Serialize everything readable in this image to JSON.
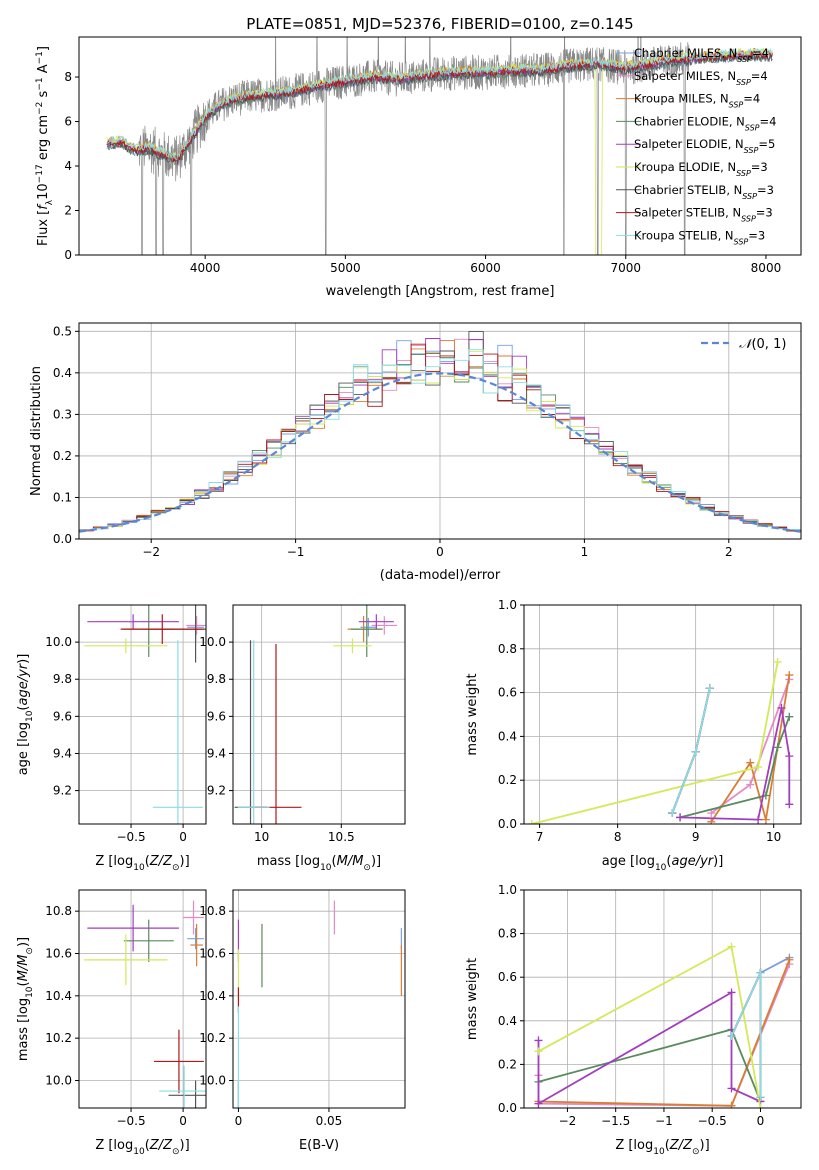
{
  "figure": {
    "title": "PLATE=0851, MJD=52376, FIBERID=0100, z=0.145"
  },
  "colors": {
    "Chabrier MILES": "#7a9fdf",
    "Salpeter MILES": "#e58ac4",
    "Kroupa MILES": "#d97d33",
    "Chabrier ELODIE": "#5a8a5e",
    "Salpeter ELODIE": "#a23dc0",
    "Kroupa ELODIE": "#d2ea58",
    "Chabrier STELIB": "#555555",
    "Salpeter STELIB": "#b01818",
    "Kroupa STELIB": "#88dde6",
    "data": "#888888",
    "normal": "#5b86d6"
  },
  "chart_data": [
    {
      "id": "spectrum",
      "type": "line",
      "xlabel": "wavelength [Angstrom, rest frame]",
      "ylabel": "Flux [f_λ10^-17 erg cm^-2 s^-1 A^-1]",
      "xlim": [
        3100,
        8250
      ],
      "ylim": [
        0,
        9.8
      ],
      "xticks": [
        4000,
        5000,
        6000,
        7000,
        8000
      ],
      "yticks": [
        0,
        2,
        4,
        6,
        8
      ],
      "grid": false,
      "legend_position": "upper-right",
      "legend": [
        {
          "name": "Chabrier MILES",
          "label": "Chabrier MILES, N",
          "sub": "SSP",
          "suffix": "=4"
        },
        {
          "name": "Salpeter MILES",
          "label": "Salpeter MILES, N",
          "sub": "SSP",
          "suffix": "=4"
        },
        {
          "name": "Kroupa MILES",
          "label": "Kroupa MILES, N",
          "sub": "SSP",
          "suffix": "=4"
        },
        {
          "name": "Chabrier ELODIE",
          "label": "Chabrier ELODIE, N",
          "sub": "SSP",
          "suffix": "=4"
        },
        {
          "name": "Salpeter ELODIE",
          "label": "Salpeter ELODIE, N",
          "sub": "SSP",
          "suffix": "=5"
        },
        {
          "name": "Kroupa ELODIE",
          "label": "Kroupa ELODIE, N",
          "sub": "SSP",
          "suffix": "=3"
        },
        {
          "name": "Chabrier STELIB",
          "label": "Chabrier STELIB, N",
          "sub": "SSP",
          "suffix": "=3"
        },
        {
          "name": "Salpeter STELIB",
          "label": "Salpeter STELIB, N",
          "sub": "SSP",
          "suffix": "=3"
        },
        {
          "name": "Kroupa STELIB",
          "label": "Kroupa STELIB, N",
          "sub": "SSP",
          "suffix": "=3"
        }
      ],
      "continuum": [
        [
          3300,
          5.0
        ],
        [
          3400,
          5.1
        ],
        [
          3500,
          4.7
        ],
        [
          3600,
          4.8
        ],
        [
          3700,
          4.5
        ],
        [
          3800,
          4.3
        ],
        [
          3900,
          5.2
        ],
        [
          4000,
          6.2
        ],
        [
          4100,
          6.7
        ],
        [
          4200,
          7.0
        ],
        [
          4400,
          7.2
        ],
        [
          4600,
          7.3
        ],
        [
          4800,
          7.6
        ],
        [
          5000,
          7.8
        ],
        [
          5200,
          8.0
        ],
        [
          5400,
          7.9
        ],
        [
          5600,
          8.1
        ],
        [
          5800,
          8.2
        ],
        [
          6000,
          8.2
        ],
        [
          6200,
          8.3
        ],
        [
          6400,
          8.3
        ],
        [
          6600,
          8.5
        ],
        [
          6800,
          8.6
        ],
        [
          7000,
          8.4
        ],
        [
          7200,
          8.6
        ],
        [
          7400,
          8.8
        ],
        [
          7600,
          8.9
        ],
        [
          7800,
          9.0
        ],
        [
          8000,
          9.0
        ],
        [
          8100,
          9.0
        ]
      ],
      "data_range": [
        3525,
        7450
      ],
      "model_range": [
        3300,
        8050
      ],
      "notes_absorption": [
        3550,
        3650,
        3700,
        3900,
        4860,
        6560,
        6800,
        7000,
        7420
      ]
    },
    {
      "id": "residuals",
      "type": "bar",
      "xlabel": "(data-model)/error",
      "ylabel": "Normed distribution",
      "xlim": [
        -2.5,
        2.5
      ],
      "ylim": [
        0,
        0.52
      ],
      "xticks": [
        -2,
        -1,
        0,
        1,
        2
      ],
      "yticks": [
        0.0,
        0.1,
        0.2,
        0.3,
        0.4,
        0.5
      ],
      "grid": true,
      "legend_position": "upper-right",
      "legend": "N(0,1)",
      "bin_width": 0.1
    },
    {
      "id": "age-vs-Z",
      "type": "scatter",
      "xlabel": "Z [log10(Z/Z⊙)]",
      "ylabel": "age [log10(age/yr)]",
      "xlim": [
        -1.0,
        0.22
      ],
      "ylim": [
        9.02,
        10.2
      ],
      "xticks": [
        -0.5,
        0.0
      ],
      "yticks": [
        9.2,
        9.4,
        9.6,
        9.8,
        10.0
      ],
      "grid": true,
      "points": [
        {
          "series": "Chabrier MILES",
          "x": 0.12,
          "y": 10.08,
          "xerr": 0.08,
          "yerr": 0.05
        },
        {
          "series": "Salpeter MILES",
          "x": 0.13,
          "y": 10.09,
          "xerr": 0.1,
          "yerr": 0.05
        },
        {
          "series": "Kroupa MILES",
          "x": 0.12,
          "y": 10.07,
          "xerr": 0.06,
          "yerr": 0.07
        },
        {
          "series": "Chabrier ELODIE",
          "x": -0.33,
          "y": 10.07,
          "xerr": 0.24,
          "yerr": 0.15
        },
        {
          "series": "Salpeter ELODIE",
          "x": -0.48,
          "y": 10.11,
          "xerr": 0.44,
          "yerr": 0.04
        },
        {
          "series": "Kroupa ELODIE",
          "x": -0.55,
          "y": 9.98,
          "xerr": 0.4,
          "yerr": 0.04
        },
        {
          "series": "Chabrier STELIB",
          "x": 0.12,
          "y": 10.07,
          "xerr": 0.46,
          "yerr": 0.18
        },
        {
          "series": "Salpeter STELIB",
          "x": -0.2,
          "y": 10.07,
          "xerr": 0.4,
          "yerr": 0.08
        },
        {
          "series": "Kroupa STELIB",
          "x": -0.05,
          "y": 9.11,
          "xerr": 0.24,
          "yerr": 0.9
        }
      ]
    },
    {
      "id": "age-vs-mass",
      "type": "scatter",
      "xlabel": "mass [log10(M/M⊙)]",
      "ylabel": "",
      "xlim": [
        9.82,
        10.9
      ],
      "ylim": [
        9.02,
        10.2
      ],
      "xticks": [
        10.0,
        10.5
      ],
      "yticks": [
        9.2,
        9.4,
        9.6,
        9.8,
        10.0
      ],
      "grid": true,
      "points": [
        {
          "series": "Chabrier MILES",
          "x": 10.67,
          "y": 10.08,
          "xerr": 0.05,
          "yerr": 0.05
        },
        {
          "series": "Salpeter MILES",
          "x": 10.77,
          "y": 10.09,
          "xerr": 0.08,
          "yerr": 0.05
        },
        {
          "series": "Kroupa MILES",
          "x": 10.64,
          "y": 10.07,
          "xerr": 0.1,
          "yerr": 0.07
        },
        {
          "series": "Chabrier ELODIE",
          "x": 10.66,
          "y": 10.07,
          "xerr": 0.1,
          "yerr": 0.15
        },
        {
          "series": "Salpeter ELODIE",
          "x": 10.72,
          "y": 10.11,
          "xerr": 0.11,
          "yerr": 0.04
        },
        {
          "series": "Kroupa ELODIE",
          "x": 10.57,
          "y": 9.98,
          "xerr": 0.12,
          "yerr": 0.04
        },
        {
          "series": "Chabrier STELIB",
          "x": 9.93,
          "y": 9.11,
          "xerr": 0.1,
          "yerr": 0.9
        },
        {
          "series": "Salpeter STELIB",
          "x": 10.09,
          "y": 9.11,
          "xerr": 0.16,
          "yerr": 0.88
        },
        {
          "series": "Kroupa STELIB",
          "x": 9.95,
          "y": 9.11,
          "xerr": 0.1,
          "yerr": 0.9
        }
      ]
    },
    {
      "id": "massweight-vs-age",
      "type": "line",
      "xlabel": "age [log10(age/yr)]",
      "ylabel": "mass weight",
      "xlim": [
        6.8,
        10.35
      ],
      "ylim": [
        0,
        1
      ],
      "xticks": [
        7,
        8,
        9,
        10
      ],
      "yticks": [
        0.0,
        0.2,
        0.4,
        0.6,
        0.8,
        1.0
      ],
      "grid": true,
      "series": [
        {
          "name": "Chabrier MILES",
          "x": [
            8.7,
            9.0,
            9.18
          ],
          "y": [
            0.05,
            0.33,
            0.62
          ]
        },
        {
          "name": "Salpeter MILES",
          "x": [
            9.2,
            9.7,
            10.2
          ],
          "y": [
            0.05,
            0.18,
            0.66
          ]
        },
        {
          "name": "Kroupa MILES",
          "x": [
            9.2,
            9.7,
            9.9,
            10.2
          ],
          "y": [
            0.01,
            0.28,
            0.02,
            0.68
          ]
        },
        {
          "name": "Chabrier ELODIE",
          "x": [
            8.8,
            9.9,
            10.05,
            10.2
          ],
          "y": [
            0.03,
            0.13,
            0.35,
            0.49
          ]
        },
        {
          "name": "Salpeter ELODIE",
          "x": [
            8.8,
            9.8,
            10.1,
            10.2,
            10.2
          ],
          "y": [
            0.03,
            0.02,
            0.53,
            0.31,
            0.09
          ]
        },
        {
          "name": "Kroupa ELODIE",
          "x": [
            6.9,
            9.8,
            10.05
          ],
          "y": [
            0.0,
            0.26,
            0.74
          ]
        },
        {
          "name": "Chabrier STELIB",
          "x": [
            8.7,
            9.0,
            9.18
          ],
          "y": [
            0.05,
            0.33,
            0.62
          ]
        },
        {
          "name": "Salpeter STELIB",
          "x": [
            8.7,
            9.0,
            9.18
          ],
          "y": [
            0.05,
            0.33,
            0.62
          ]
        },
        {
          "name": "Kroupa STELIB",
          "x": [
            8.7,
            9.0,
            9.18
          ],
          "y": [
            0.05,
            0.33,
            0.62
          ]
        }
      ]
    },
    {
      "id": "mass-vs-Z",
      "type": "scatter",
      "xlabel": "Z [log10(Z/Z⊙)]",
      "ylabel": "mass [log10(M/M⊙)]",
      "xlim": [
        -1.0,
        0.22
      ],
      "ylim": [
        9.87,
        10.9
      ],
      "xticks": [
        -0.5,
        0.0
      ],
      "yticks": [
        10.0,
        10.2,
        10.4,
        10.6,
        10.8
      ],
      "grid": true,
      "points": [
        {
          "series": "Chabrier MILES",
          "x": 0.12,
          "y": 10.67,
          "xerr": 0.08,
          "yerr": 0.05
        },
        {
          "series": "Salpeter MILES",
          "x": 0.1,
          "y": 10.77,
          "xerr": 0.1,
          "yerr": 0.08
        },
        {
          "series": "Kroupa MILES",
          "x": 0.13,
          "y": 10.64,
          "xerr": 0.06,
          "yerr": 0.1
        },
        {
          "series": "Chabrier ELODIE",
          "x": -0.33,
          "y": 10.66,
          "xerr": 0.24,
          "yerr": 0.1
        },
        {
          "series": "Salpeter ELODIE",
          "x": -0.48,
          "y": 10.72,
          "xerr": 0.44,
          "yerr": 0.11
        },
        {
          "series": "Kroupa ELODIE",
          "x": -0.55,
          "y": 10.57,
          "xerr": 0.4,
          "yerr": 0.12
        },
        {
          "series": "Chabrier STELIB",
          "x": 0.12,
          "y": 9.93,
          "xerr": 0.26,
          "yerr": 0.07
        },
        {
          "series": "Salpeter STELIB",
          "x": -0.04,
          "y": 10.09,
          "xerr": 0.24,
          "yerr": 0.15
        },
        {
          "series": "Kroupa STELIB",
          "x": 0.01,
          "y": 9.95,
          "xerr": 0.24,
          "yerr": 0.12
        }
      ]
    },
    {
      "id": "mass-vs-EBV",
      "type": "scatter",
      "xlabel": "E(B-V)",
      "ylabel": "",
      "xlim": [
        -0.003,
        0.092
      ],
      "ylim": [
        9.87,
        10.9
      ],
      "xticks": [
        0.0,
        0.05
      ],
      "yticks": [
        10.0,
        10.2,
        10.4,
        10.6,
        10.8
      ],
      "grid": true,
      "points": [
        {
          "series": "Chabrier MILES",
          "x": 0.09,
          "y": 10.67,
          "xerr": 0,
          "yerr": 0.05
        },
        {
          "series": "Salpeter MILES",
          "x": 0.053,
          "y": 10.77,
          "xerr": 0,
          "yerr": 0.08
        },
        {
          "series": "Kroupa MILES",
          "x": 0.09,
          "y": 10.52,
          "xerr": 0,
          "yerr": 0.12
        },
        {
          "series": "Chabrier ELODIE",
          "x": 0.013,
          "y": 10.59,
          "xerr": 0,
          "yerr": 0.15
        },
        {
          "series": "Salpeter ELODIE",
          "x": 0.0,
          "y": 10.66,
          "xerr": 0,
          "yerr": 0.1
        },
        {
          "series": "Kroupa ELODIE",
          "x": 0.0,
          "y": 10.5,
          "xerr": 0,
          "yerr": 0.12
        },
        {
          "series": "Chabrier STELIB",
          "x": 0.0,
          "y": 9.93,
          "xerr": 0,
          "yerr": 0.07
        },
        {
          "series": "Salpeter STELIB",
          "x": 0.0,
          "y": 10.38,
          "xerr": 0,
          "yerr": 0.06
        },
        {
          "series": "Kroupa STELIB",
          "x": 0.0,
          "y": 10.1,
          "xerr": 0,
          "yerr": 0.25
        }
      ]
    },
    {
      "id": "massweight-vs-Z",
      "type": "line",
      "xlabel": "Z [log10(Z/Z⊙)]",
      "ylabel": "mass weight",
      "xlim": [
        -2.45,
        0.42
      ],
      "ylim": [
        0,
        1
      ],
      "xticks": [
        -2.0,
        -1.5,
        -1.0,
        -0.5,
        0.0
      ],
      "yticks": [
        0.0,
        0.2,
        0.4,
        0.6,
        0.8,
        1.0
      ],
      "grid": true,
      "series": [
        {
          "name": "Chabrier MILES",
          "x": [
            -0.3,
            0.0,
            0.3
          ],
          "y": [
            0.33,
            0.62,
            0.69
          ]
        },
        {
          "name": "Salpeter MILES",
          "x": [
            -2.3,
            -2.3,
            -0.3,
            0.3
          ],
          "y": [
            0.15,
            0.02,
            0.01,
            0.66
          ]
        },
        {
          "name": "Kroupa MILES",
          "x": [
            -2.3,
            -0.3,
            0.3
          ],
          "y": [
            0.03,
            0.01,
            0.68
          ]
        },
        {
          "name": "Chabrier ELODIE",
          "x": [
            -2.3,
            -0.3,
            0.0,
            0.0
          ],
          "y": [
            0.12,
            0.36,
            0.03,
            0.05
          ]
        },
        {
          "name": "Salpeter ELODIE",
          "x": [
            -2.3,
            -2.3,
            -0.3,
            -0.3,
            0.0
          ],
          "y": [
            0.31,
            0.02,
            0.53,
            0.09,
            0.03
          ]
        },
        {
          "name": "Kroupa ELODIE",
          "x": [
            -2.3,
            -0.3,
            0.0
          ],
          "y": [
            0.26,
            0.74,
            0.0
          ]
        },
        {
          "name": "Chabrier STELIB",
          "x": [
            -0.3,
            0.0,
            0.0
          ],
          "y": [
            0.33,
            0.62,
            0.05
          ]
        },
        {
          "name": "Salpeter STELIB",
          "x": [
            -0.3,
            0.0,
            0.0
          ],
          "y": [
            0.33,
            0.62,
            0.05
          ]
        },
        {
          "name": "Kroupa STELIB",
          "x": [
            -0.3,
            0.0,
            0.0
          ],
          "y": [
            0.33,
            0.62,
            0.05
          ]
        }
      ]
    }
  ]
}
